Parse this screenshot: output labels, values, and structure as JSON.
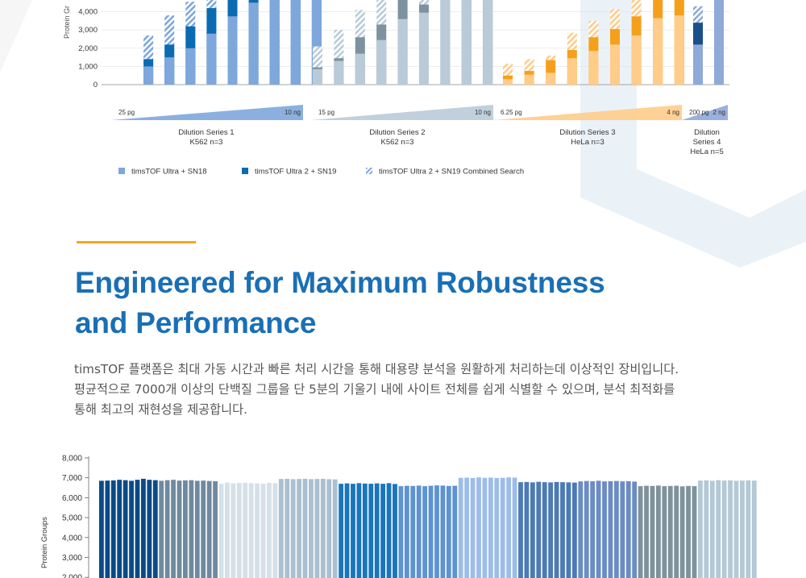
{
  "colors": {
    "accent": "#f5a623",
    "heading": "#1a6fb5",
    "sn18": "#7ea7dc",
    "sn19": "#0a6bb3",
    "series2_light": "#b9cbd8",
    "series2_dark": "#7d929f",
    "series3_light": "#ffcc8a",
    "series3_dark": "#f5a01c",
    "series4_light": "#8fa9d9",
    "series4_dark": "#1b4f8c"
  },
  "heading": {
    "line1": "Engineered for Maximum Robustness",
    "line2": "and Performance"
  },
  "body": {
    "line1": "timsTOF 플랫폼은 최대 가동 시간과 빠른 처리 시간을 통해 대용량 분석을 원활하게 처리하는데 이상적인 장비입니다.",
    "line2": "평균적으로 7000개 이상의 단백질 그룹을 단 5분의 기울기 내에 사이트 전체를 쉽게 식별할 수 있으며, 분석 최적화를",
    "line3": "통해 최고의 재현성을 제공합니다."
  },
  "chart_data": [
    {
      "type": "bar",
      "title": "",
      "ylabel": "Protein Gr",
      "ylim": [
        0,
        4500
      ],
      "yticks": [
        "0",
        "1,000",
        "2,000",
        "3,000",
        "4,000"
      ],
      "legend": [
        {
          "label": "timsTOF Ultra + SN18",
          "pattern": "solid-light"
        },
        {
          "label": "timsTOF Ultra 2 + SN19",
          "pattern": "solid-dark"
        },
        {
          "label": "timsTOF Ultra 2 + SN19 Combined Search",
          "pattern": "hatched"
        }
      ],
      "groups": [
        {
          "name": "Dilution Series 1",
          "sub": "K562 n=3",
          "range_start": "25 pg",
          "range_end": "10 ng",
          "light": "#7ea7dc",
          "dark": "#0a6bb3",
          "bars": [
            {
              "sn18": 0,
              "sn19": 0,
              "combined": 0
            },
            {
              "sn18": 1000,
              "sn19": 1400,
              "combined": 2700
            },
            {
              "sn18": 1500,
              "sn19": 2200,
              "combined": 3800
            },
            {
              "sn18": 2000,
              "sn19": 3200,
              "combined": 4550
            },
            {
              "sn18": 2800,
              "sn19": 4200,
              "combined": 5000
            },
            {
              "sn18": 3750,
              "sn19": 5000,
              "combined": 5000
            },
            {
              "sn18": 4500,
              "sn19": 4650,
              "combined": 5000
            },
            {
              "sn18": 5000,
              "sn19": 5000,
              "combined": 5000
            },
            {
              "sn18": 5000,
              "sn19": 5000,
              "combined": 5000
            },
            {
              "sn18": 5000,
              "sn19": 5000,
              "combined": 5000
            }
          ]
        },
        {
          "name": "Dilution Series 2",
          "sub": "K562 n=3",
          "range_start": "15 pg",
          "range_end": "10 ng",
          "light": "#b9cbd8",
          "dark": "#7d929f",
          "bars": [
            {
              "sn18": 850,
              "sn19": 950,
              "combined": 2100
            },
            {
              "sn18": 1300,
              "sn19": 1450,
              "combined": 3000
            },
            {
              "sn18": 1700,
              "sn19": 2600,
              "combined": 4100
            },
            {
              "sn18": 2450,
              "sn19": 3300,
              "combined": 5000
            },
            {
              "sn18": 3600,
              "sn19": 5000,
              "combined": 5000
            },
            {
              "sn18": 3950,
              "sn19": 4400,
              "combined": 5000
            },
            {
              "sn18": 5000,
              "sn19": 5000,
              "combined": 5000
            },
            {
              "sn18": 5000,
              "sn19": 5000,
              "combined": 5000
            },
            {
              "sn18": 5000,
              "sn19": 5000,
              "combined": 5000
            }
          ]
        },
        {
          "name": "Dilution Series 3",
          "sub": "HeLa n=3",
          "range_start": "6.25 pg",
          "range_end": "4 ng",
          "light": "#ffcc8a",
          "dark": "#f5a01c",
          "bars": [
            {
              "sn18": 300,
              "sn19": 500,
              "combined": 1150
            },
            {
              "sn18": 550,
              "sn19": 750,
              "combined": 1400
            },
            {
              "sn18": 650,
              "sn19": 1350,
              "combined": 1600
            },
            {
              "sn18": 1450,
              "sn19": 1900,
              "combined": 2850
            },
            {
              "sn18": 1850,
              "sn19": 2600,
              "combined": 3500
            },
            {
              "sn18": 2200,
              "sn19": 3050,
              "combined": 4150
            },
            {
              "sn18": 2700,
              "sn19": 3750,
              "combined": 4900
            },
            {
              "sn18": 3650,
              "sn19": 4750,
              "combined": 5000
            },
            {
              "sn18": 3800,
              "sn19": 4700,
              "combined": 5000
            }
          ]
        },
        {
          "name": "Dilution Series 4",
          "sub": "HeLa n=5",
          "range_start": "200 pg",
          "range_end": "2 ng",
          "light": "#8fa9d9",
          "dark": "#1b4f8c",
          "bars": [
            {
              "sn18": 2200,
              "sn19": 3400,
              "combined": 4300
            },
            {
              "sn18": 5000,
              "sn19": 5000,
              "combined": 5000
            }
          ]
        }
      ]
    },
    {
      "type": "bar",
      "title": "",
      "ylabel": "Protein Groups",
      "ylim": [
        1800,
        8200
      ],
      "yticks": [
        "8,000",
        "7,000",
        "6,000",
        "5,000",
        "4,000",
        "3,000",
        "2,000"
      ],
      "series": [
        {
          "color": "#0b4a86",
          "values": [
            6850,
            6860,
            6870,
            6900,
            6880,
            6850,
            6900,
            6950,
            6900,
            6880
          ]
        },
        {
          "color": "#6f8a9e",
          "values": [
            6850,
            6880,
            6900,
            6860,
            6870,
            6880,
            6850,
            6860,
            6840,
            6830
          ]
        },
        {
          "color": "#d6e0e8",
          "values": [
            6700,
            6760,
            6720,
            6740,
            6750,
            6730,
            6720,
            6700,
            6750,
            6730
          ]
        },
        {
          "color": "#aabfcf",
          "values": [
            6940,
            6950,
            6930,
            6940,
            6950,
            6930,
            6940,
            6950,
            6930,
            6920
          ]
        },
        {
          "color": "#1a75bc",
          "values": [
            6700,
            6720,
            6700,
            6730,
            6710,
            6700,
            6720,
            6700,
            6730,
            6690
          ]
        },
        {
          "color": "#5d93d1",
          "values": [
            6580,
            6600,
            6590,
            6610,
            6580,
            6600,
            6620,
            6610,
            6590,
            6600
          ]
        },
        {
          "color": "#9dbde8",
          "values": [
            7000,
            7010,
            6990,
            7020,
            7000,
            7010,
            6990,
            7000,
            7020,
            7010
          ]
        },
        {
          "color": "#4c7ab4",
          "values": [
            6780,
            6790,
            6770,
            6800,
            6780,
            6770,
            6790,
            6780,
            6770,
            6760
          ]
        },
        {
          "color": "#6b8cc4",
          "values": [
            6820,
            6840,
            6830,
            6850,
            6820,
            6830,
            6840,
            6820,
            6830,
            6810
          ]
        },
        {
          "color": "#7f929c",
          "values": [
            6580,
            6600,
            6590,
            6610,
            6580,
            6590,
            6600,
            6570,
            6590,
            6580
          ]
        },
        {
          "color": "#b4c8d6",
          "values": [
            6860,
            6870,
            6850,
            6880,
            6860,
            6870,
            6850,
            6860,
            6870,
            6860
          ]
        }
      ]
    }
  ]
}
